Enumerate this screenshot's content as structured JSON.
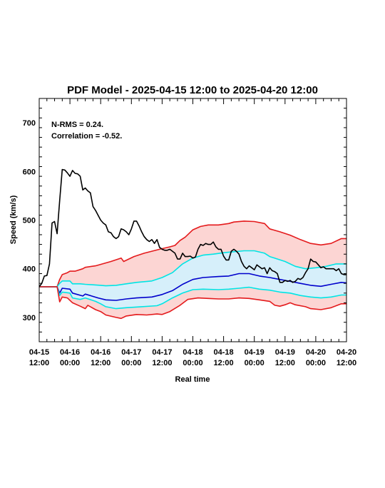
{
  "chart_data": {
    "type": "line",
    "title": "PDF Model - 2025-04-15 12:00 to 2025-04-20 12:00",
    "xlabel": "Real time",
    "ylabel": "Speed (km/s)",
    "xlim": [
      0,
      120
    ],
    "ylim": [
      250,
      750
    ],
    "x_unit": "hours since 2025-04-15 12:00",
    "x_ticks": [
      {
        "x": 0,
        "line1": "04-15",
        "line2": "12:00"
      },
      {
        "x": 12,
        "line1": "04-16",
        "line2": "00:00"
      },
      {
        "x": 24,
        "line1": "04-16",
        "line2": "12:00"
      },
      {
        "x": 36,
        "line1": "04-17",
        "line2": "00:00"
      },
      {
        "x": 48,
        "line1": "04-17",
        "line2": "12:00"
      },
      {
        "x": 60,
        "line1": "04-18",
        "line2": "00:00"
      },
      {
        "x": 72,
        "line1": "04-18",
        "line2": "12:00"
      },
      {
        "x": 84,
        "line1": "04-19",
        "line2": "00:00"
      },
      {
        "x": 96,
        "line1": "04-19",
        "line2": "12:00"
      },
      {
        "x": 108,
        "line1": "04-20",
        "line2": "00:00"
      },
      {
        "x": 120,
        "line1": "04-20",
        "line2": "12:00"
      }
    ],
    "y_ticks": [
      300,
      400,
      500,
      600,
      700
    ],
    "annotations": [
      "N-RMS = 0.24.",
      "Correlation = -0.52."
    ],
    "grid": false,
    "series": [
      {
        "color": "#e41a1c",
        "role": "upper-outer-band",
        "points": [
          [
            0,
            363
          ],
          [
            7,
            363
          ],
          [
            8,
            378
          ],
          [
            9,
            388
          ],
          [
            11,
            392
          ],
          [
            12,
            395
          ],
          [
            14,
            395
          ],
          [
            17,
            400
          ],
          [
            18,
            403
          ],
          [
            22,
            406
          ],
          [
            28,
            415
          ],
          [
            32,
            422
          ],
          [
            33,
            415
          ],
          [
            37,
            425
          ],
          [
            41,
            432
          ],
          [
            47,
            440
          ],
          [
            51,
            445
          ],
          [
            53,
            448
          ],
          [
            55,
            458
          ],
          [
            57,
            465
          ],
          [
            60,
            480
          ],
          [
            63,
            487
          ],
          [
            66,
            490
          ],
          [
            70,
            490
          ],
          [
            74,
            493
          ],
          [
            76,
            496
          ],
          [
            80,
            498
          ],
          [
            84,
            497
          ],
          [
            88,
            493
          ],
          [
            90,
            482
          ],
          [
            94,
            476
          ],
          [
            98,
            469
          ],
          [
            102,
            460
          ],
          [
            106,
            452
          ],
          [
            110,
            449
          ],
          [
            114,
            452
          ],
          [
            118,
            462
          ],
          [
            120,
            462
          ]
        ]
      },
      {
        "color": "#00e5e5",
        "role": "upper-inner-band",
        "points": [
          [
            0,
            363
          ],
          [
            7,
            363
          ],
          [
            8,
            370
          ],
          [
            9,
            375
          ],
          [
            12,
            375
          ],
          [
            13,
            369
          ],
          [
            16,
            369
          ],
          [
            18,
            368
          ],
          [
            24,
            366
          ],
          [
            26,
            365
          ],
          [
            30,
            366
          ],
          [
            34,
            369
          ],
          [
            38,
            372
          ],
          [
            44,
            375
          ],
          [
            48,
            382
          ],
          [
            52,
            392
          ],
          [
            56,
            410
          ],
          [
            60,
            422
          ],
          [
            64,
            428
          ],
          [
            68,
            430
          ],
          [
            72,
            433
          ],
          [
            76,
            435
          ],
          [
            80,
            437
          ],
          [
            84,
            437
          ],
          [
            88,
            432
          ],
          [
            90,
            425
          ],
          [
            96,
            415
          ],
          [
            100,
            405
          ],
          [
            104,
            400
          ],
          [
            108,
            402
          ],
          [
            112,
            405
          ],
          [
            116,
            410
          ],
          [
            120,
            410
          ]
        ]
      },
      {
        "color": "#0000cc",
        "role": "median",
        "points": [
          [
            0,
            363
          ],
          [
            7,
            363
          ],
          [
            8,
            350
          ],
          [
            9,
            360
          ],
          [
            12,
            358
          ],
          [
            13,
            350
          ],
          [
            17,
            344
          ],
          [
            18,
            348
          ],
          [
            23,
            340
          ],
          [
            26,
            336
          ],
          [
            30,
            335
          ],
          [
            34,
            338
          ],
          [
            38,
            340
          ],
          [
            44,
            342
          ],
          [
            48,
            347
          ],
          [
            52,
            355
          ],
          [
            56,
            368
          ],
          [
            60,
            378
          ],
          [
            64,
            382
          ],
          [
            70,
            384
          ],
          [
            74,
            385
          ],
          [
            78,
            390
          ],
          [
            82,
            390
          ],
          [
            86,
            385
          ],
          [
            90,
            382
          ],
          [
            94,
            378
          ],
          [
            98,
            374
          ],
          [
            102,
            370
          ],
          [
            106,
            366
          ],
          [
            110,
            364
          ],
          [
            114,
            368
          ],
          [
            118,
            372
          ],
          [
            120,
            371
          ]
        ]
      },
      {
        "color": "#00e5e5",
        "role": "lower-inner-band",
        "points": [
          [
            0,
            363
          ],
          [
            7,
            363
          ],
          [
            8,
            345
          ],
          [
            9,
            352
          ],
          [
            12,
            350
          ],
          [
            13,
            340
          ],
          [
            16,
            337
          ],
          [
            18,
            340
          ],
          [
            22,
            333
          ],
          [
            24,
            328
          ],
          [
            26,
            322
          ],
          [
            30,
            318
          ],
          [
            34,
            320
          ],
          [
            40,
            322
          ],
          [
            46,
            324
          ],
          [
            48,
            328
          ],
          [
            52,
            340
          ],
          [
            56,
            350
          ],
          [
            60,
            357
          ],
          [
            64,
            358
          ],
          [
            70,
            357
          ],
          [
            74,
            358
          ],
          [
            78,
            360
          ],
          [
            82,
            362
          ],
          [
            86,
            358
          ],
          [
            90,
            356
          ],
          [
            94,
            352
          ],
          [
            98,
            350
          ],
          [
            102,
            345
          ],
          [
            106,
            342
          ],
          [
            110,
            340
          ],
          [
            114,
            342
          ],
          [
            118,
            346
          ],
          [
            120,
            346
          ]
        ]
      },
      {
        "color": "#e41a1c",
        "role": "lower-outer-band",
        "points": [
          [
            0,
            363
          ],
          [
            7,
            363
          ],
          [
            8,
            332
          ],
          [
            9,
            342
          ],
          [
            11,
            340
          ],
          [
            13,
            330
          ],
          [
            16,
            323
          ],
          [
            18,
            318
          ],
          [
            19,
            325
          ],
          [
            22,
            316
          ],
          [
            24,
            312
          ],
          [
            26,
            305
          ],
          [
            30,
            300
          ],
          [
            32,
            298
          ],
          [
            34,
            303
          ],
          [
            38,
            306
          ],
          [
            42,
            305
          ],
          [
            46,
            307
          ],
          [
            48,
            306
          ],
          [
            51,
            312
          ],
          [
            55,
            325
          ],
          [
            58,
            337
          ],
          [
            62,
            340
          ],
          [
            66,
            339
          ],
          [
            70,
            338
          ],
          [
            74,
            338
          ],
          [
            78,
            340
          ],
          [
            82,
            339
          ],
          [
            86,
            336
          ],
          [
            90,
            333
          ],
          [
            92,
            325
          ],
          [
            94,
            323
          ],
          [
            96,
            326
          ],
          [
            98,
            330
          ],
          [
            100,
            326
          ],
          [
            104,
            322
          ],
          [
            106,
            318
          ],
          [
            110,
            316
          ],
          [
            114,
            320
          ],
          [
            118,
            328
          ],
          [
            120,
            328
          ]
        ]
      },
      {
        "color": "#000000",
        "role": "observed",
        "points": [
          [
            0,
            363
          ],
          [
            1,
            370
          ],
          [
            2,
            385
          ],
          [
            3,
            386
          ],
          [
            4,
            410
          ],
          [
            5,
            494
          ],
          [
            6,
            497
          ],
          [
            7,
            472
          ],
          [
            8,
            540
          ],
          [
            9,
            604
          ],
          [
            10,
            603
          ],
          [
            11,
            597
          ],
          [
            12,
            590
          ],
          [
            13,
            602
          ],
          [
            14,
            596
          ],
          [
            15,
            595
          ],
          [
            16,
            590
          ],
          [
            17,
            562
          ],
          [
            18,
            566
          ],
          [
            19,
            560
          ],
          [
            20,
            556
          ],
          [
            21,
            528
          ],
          [
            22,
            520
          ],
          [
            23,
            510
          ],
          [
            24,
            500
          ],
          [
            25,
            494
          ],
          [
            26,
            490
          ],
          [
            27,
            476
          ],
          [
            28,
            474
          ],
          [
            29,
            466
          ],
          [
            30,
            462
          ],
          [
            31,
            466
          ],
          [
            32,
            482
          ],
          [
            33,
            480
          ],
          [
            34,
            476
          ],
          [
            35,
            470
          ],
          [
            36,
            482
          ],
          [
            37,
            498
          ],
          [
            38,
            498
          ],
          [
            39,
            488
          ],
          [
            40,
            476
          ],
          [
            41,
            466
          ],
          [
            42,
            460
          ],
          [
            43,
            456
          ],
          [
            44,
            460
          ],
          [
            45,
            452
          ],
          [
            46,
            460
          ],
          [
            47,
            444
          ],
          [
            48,
            440
          ],
          [
            49,
            438
          ],
          [
            50,
            438
          ],
          [
            51,
            440
          ],
          [
            52,
            436
          ],
          [
            53,
            432
          ],
          [
            54,
            420
          ],
          [
            55,
            420
          ],
          [
            56,
            432
          ],
          [
            57,
            425
          ],
          [
            58,
            425
          ],
          [
            59,
            426
          ],
          [
            60,
            422
          ],
          [
            61,
            424
          ],
          [
            62,
            440
          ],
          [
            63,
            450
          ],
          [
            64,
            448
          ],
          [
            65,
            452
          ],
          [
            66,
            450
          ],
          [
            67,
            450
          ],
          [
            68,
            455
          ],
          [
            69,
            445
          ],
          [
            70,
            440
          ],
          [
            71,
            440
          ],
          [
            72,
            426
          ],
          [
            73,
            418
          ],
          [
            74,
            418
          ],
          [
            75,
            436
          ],
          [
            76,
            440
          ],
          [
            77,
            436
          ],
          [
            78,
            430
          ],
          [
            79,
            415
          ],
          [
            80,
            405
          ],
          [
            81,
            400
          ],
          [
            82,
            406
          ],
          [
            83,
            402
          ],
          [
            84,
            398
          ],
          [
            85,
            408
          ],
          [
            86,
            404
          ],
          [
            87,
            400
          ],
          [
            88,
            402
          ],
          [
            89,
            390
          ],
          [
            90,
            402
          ],
          [
            91,
            396
          ],
          [
            92,
            394
          ],
          [
            93,
            390
          ],
          [
            94,
            372
          ],
          [
            95,
            372
          ],
          [
            96,
            376
          ],
          [
            97,
            374
          ],
          [
            98,
            376
          ],
          [
            99,
            372
          ],
          [
            100,
            374
          ],
          [
            101,
            380
          ],
          [
            102,
            378
          ],
          [
            103,
            382
          ],
          [
            104,
            392
          ],
          [
            105,
            400
          ],
          [
            106,
            420
          ],
          [
            107,
            415
          ],
          [
            108,
            414
          ],
          [
            109,
            408
          ],
          [
            110,
            402
          ],
          [
            111,
            404
          ],
          [
            112,
            400
          ],
          [
            113,
            400
          ],
          [
            114,
            400
          ],
          [
            115,
            400
          ],
          [
            116,
            396
          ],
          [
            117,
            400
          ],
          [
            118,
            390
          ],
          [
            119,
            388
          ],
          [
            120,
            388
          ]
        ]
      }
    ],
    "fills": [
      {
        "between": [
          "upper-outer-band",
          "upper-inner-band"
        ],
        "color": "#fcd5d3"
      },
      {
        "between": [
          "upper-inner-band",
          "lower-inner-band"
        ],
        "color": "#d6effa"
      },
      {
        "between": [
          "lower-inner-band",
          "lower-outer-band"
        ],
        "color": "#fcd5d3"
      }
    ]
  }
}
